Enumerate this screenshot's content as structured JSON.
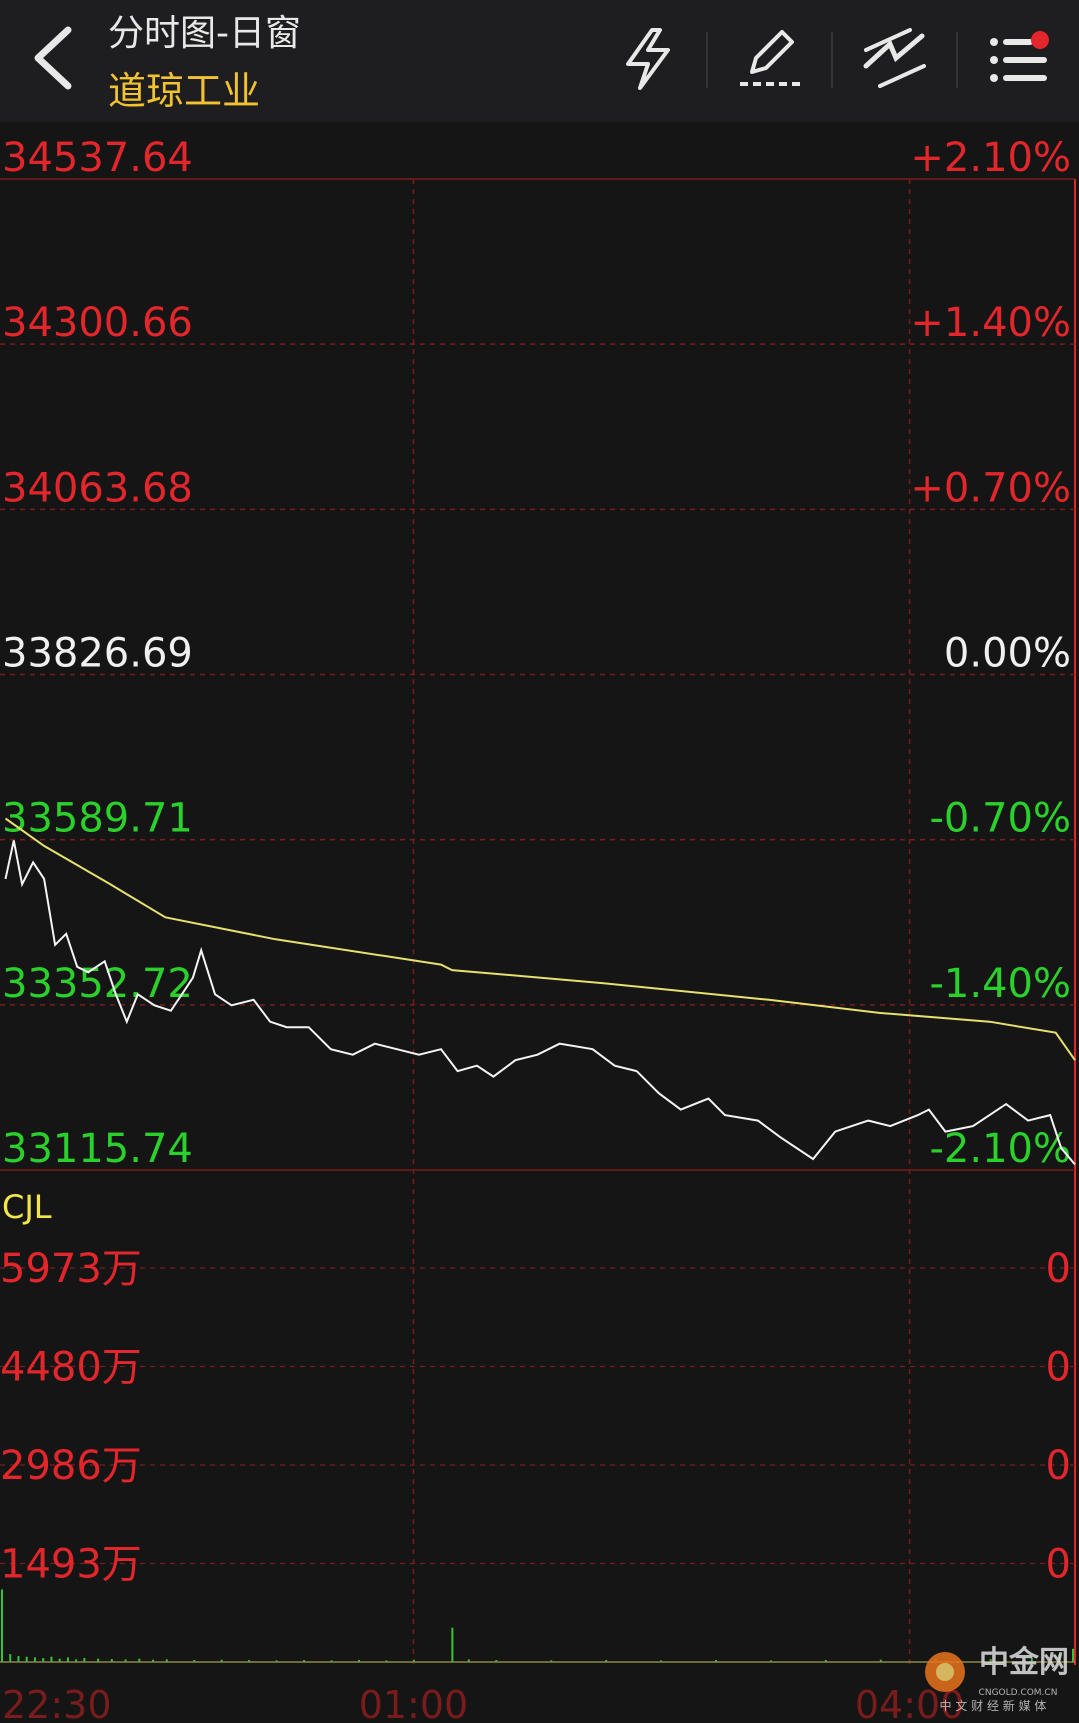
{
  "header": {
    "title": "分时图-日窗",
    "subtitle": "道琼工业"
  },
  "watermark": {
    "brand": "中金网",
    "site": "CNGOLD.COM.CN",
    "slogan": "中 文 财 经 新 媒 体"
  },
  "chart_data": [
    {
      "type": "line",
      "up_color": "#e3262b",
      "down_color": "#2bd12b",
      "flat_color": "#f0f0f0",
      "grid_color": "#7a1c1c",
      "xlim": [
        0,
        390
      ],
      "xticks": [
        {
          "value": 0,
          "label": "22:30"
        },
        {
          "value": 150,
          "label": "01:00"
        },
        {
          "value": 330,
          "label": "04:00"
        }
      ],
      "ylim": [
        33115.74,
        34537.64
      ],
      "yticks": [
        34537.64,
        34300.66,
        34063.68,
        33826.69,
        33589.71,
        33352.72,
        33115.74
      ],
      "y2lim": [
        -2.1,
        2.1
      ],
      "y2ticks": [
        {
          "value": 2.1,
          "label": "+2.10%"
        },
        {
          "value": 1.4,
          "label": "+1.40%"
        },
        {
          "value": 0.7,
          "label": "+0.70%"
        },
        {
          "value": 0,
          "label": "0.00%"
        },
        {
          "value": -0.7,
          "label": "-0.70%"
        },
        {
          "value": -1.4,
          "label": "-1.40%"
        },
        {
          "value": -2.1,
          "label": "-2.10%"
        }
      ],
      "series": [
        {
          "color": "#f4f4f4",
          "x": [
            2,
            5,
            8,
            12,
            16,
            20,
            24,
            28,
            32,
            38,
            42,
            46,
            50,
            56,
            62,
            66,
            70,
            73,
            78,
            84,
            92,
            98,
            104,
            112,
            120,
            128,
            136,
            144,
            152,
            160,
            166,
            173,
            179,
            187,
            195,
            203,
            215,
            223,
            231,
            239,
            247,
            257,
            263,
            275,
            283,
            295,
            303,
            315,
            323,
            333,
            337,
            343,
            353,
            365,
            373,
            381,
            385,
            390
          ],
          "values": [
            33533.4,
            33588.6,
            33525.6,
            33557.1,
            33533.4,
            33438.8,
            33454.6,
            33407.3,
            33399.4,
            33415.2,
            33367.9,
            33328.5,
            33367.9,
            33352.1,
            33344.3,
            33367.9,
            33391.6,
            33431.0,
            33367.9,
            33352.1,
            33360.0,
            33328.5,
            33320.6,
            33320.6,
            33289.1,
            33281.2,
            33297.0,
            33289.1,
            33281.2,
            33289.1,
            33257.6,
            33265.4,
            33249.7,
            33273.3,
            33281.2,
            33297.0,
            33289.1,
            33265.4,
            33257.6,
            33226.0,
            33202.4,
            33218.2,
            33194.5,
            33186.6,
            33163.0,
            33131.5,
            33170.9,
            33186.6,
            33178.7,
            33194.5,
            33202.4,
            33170.9,
            33178.7,
            33210.3,
            33186.6,
            33194.5,
            33147.2,
            33123.6
          ]
        },
        {
          "color": "#e6e070",
          "x": [
            2,
            16,
            40,
            60,
            100,
            160,
            164,
            219,
            279,
            319,
            359,
            383,
            390
          ],
          "values": [
            33620.1,
            33580.7,
            33525.6,
            33478.3,
            33446.7,
            33410.5,
            33402.6,
            33383.7,
            33360.0,
            33341.1,
            33328.5,
            33312.7,
            33273.3
          ]
        }
      ]
    },
    {
      "type": "bar",
      "title": "CJL",
      "title_color": "#f2e64a",
      "color": "#37c437",
      "label_color": "#e3262b",
      "xlim": [
        0,
        390
      ],
      "ylim": [
        0,
        5973
      ],
      "yticks": [
        {
          "value": 5973,
          "label": "5973万"
        },
        {
          "value": 4480,
          "label": "4480万"
        },
        {
          "value": 2986,
          "label": "2986万"
        },
        {
          "value": 1493,
          "label": "1493万"
        }
      ],
      "right_labels": [
        "0",
        "0",
        "0",
        "0"
      ],
      "x": [
        0,
        3,
        6,
        9,
        12,
        15,
        18,
        21,
        24,
        27,
        30,
        35,
        40,
        45,
        50,
        55,
        60,
        70,
        80,
        90,
        100,
        110,
        120,
        130,
        140,
        150,
        164,
        170,
        180,
        200,
        220,
        240,
        260,
        280,
        300,
        320,
        340,
        360,
        375,
        385,
        390
      ],
      "values": [
        1100,
        120,
        90,
        80,
        70,
        60,
        80,
        50,
        70,
        40,
        60,
        50,
        45,
        40,
        50,
        35,
        40,
        30,
        35,
        30,
        25,
        30,
        25,
        30,
        25,
        30,
        520,
        40,
        30,
        25,
        30,
        25,
        30,
        25,
        30,
        35,
        40,
        45,
        60,
        110,
        200
      ]
    }
  ]
}
